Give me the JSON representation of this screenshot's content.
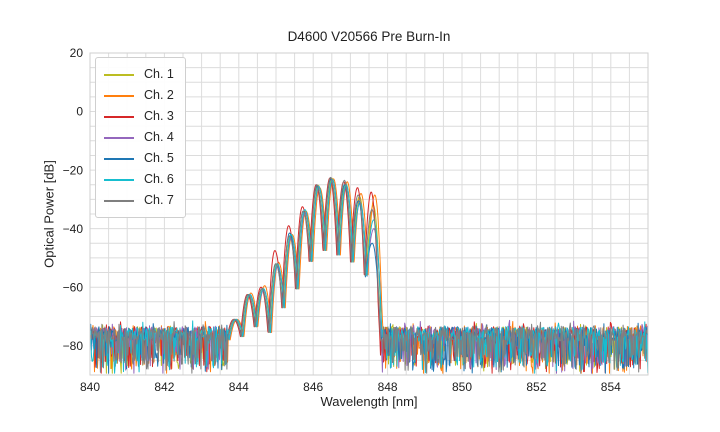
{
  "figure": {
    "title": "D4600 V20566 Pre Burn-In",
    "xlabel": "Wavelength [nm]",
    "ylabel": "Optical Power [dB]",
    "background": "#ffffff",
    "text_color": "#1f1f1f"
  },
  "legend": {
    "items": [
      {
        "label": "Ch. 1",
        "color": "#bcbd22"
      },
      {
        "label": "Ch. 2",
        "color": "#ff7f0e"
      },
      {
        "label": "Ch. 3",
        "color": "#d62728"
      },
      {
        "label": "Ch. 4",
        "color": "#9467bd"
      },
      {
        "label": "Ch. 5",
        "color": "#1f77b4"
      },
      {
        "label": "Ch. 6",
        "color": "#17becf"
      },
      {
        "label": "Ch. 7",
        "color": "#7f7f7f"
      }
    ]
  },
  "chart_data": {
    "type": "line",
    "title": "D4600 V20566 Pre Burn-In",
    "xlabel": "Wavelength [nm]",
    "ylabel": "Optical Power [dB]",
    "xlim": [
      840,
      855
    ],
    "ylim": [
      -90,
      20
    ],
    "x_ticks": [
      {
        "value": 840,
        "label": "840"
      },
      {
        "value": 842,
        "label": "842"
      },
      {
        "value": 844,
        "label": "844"
      },
      {
        "value": 846,
        "label": "846"
      },
      {
        "value": 848,
        "label": "848"
      },
      {
        "value": 850,
        "label": "850"
      },
      {
        "value": 852,
        "label": "852"
      },
      {
        "value": 854,
        "label": "854"
      }
    ],
    "y_ticks": [
      {
        "value": 20,
        "label": "20"
      },
      {
        "value": 0,
        "label": "0"
      },
      {
        "value": -20,
        "label": "−20"
      },
      {
        "value": -40,
        "label": "−40"
      },
      {
        "value": -60,
        "label": "−60"
      },
      {
        "value": -80,
        "label": "−80"
      }
    ],
    "grid": {
      "x_step": 0.5,
      "y_step": 5,
      "color": "#dcdcdc",
      "frame_color": "#cfcfcf"
    },
    "signal": {
      "lobe_half_width": 0.185,
      "step_nm": 0.008,
      "lobes": [
        {
          "c": 843.91,
          "peak": -71.0,
          "null_l": -78,
          "null_r": -77
        },
        {
          "c": 844.28,
          "peak": -62.5,
          "null_l": -77,
          "null_r": -74
        },
        {
          "c": 844.65,
          "peak": -60.5,
          "null_l": -74,
          "null_r": -76
        },
        {
          "c": 845.02,
          "peak": -52.0,
          "null_l": -76,
          "null_r": -67
        },
        {
          "c": 845.39,
          "peak": -42.0,
          "null_l": -67,
          "null_r": -61
        },
        {
          "c": 845.76,
          "peak": -34.0,
          "null_l": -61,
          "null_r": -52
        },
        {
          "c": 846.13,
          "peak": -25.5,
          "null_l": -52,
          "null_r": -48
        },
        {
          "c": 846.5,
          "peak": -23.0,
          "null_l": -48,
          "null_r": -49
        },
        {
          "c": 846.87,
          "peak": -24.5,
          "null_l": -49,
          "null_r": -52
        },
        {
          "c": 847.24,
          "peak": -28.5,
          "null_l": -52,
          "null_r": -57
        },
        {
          "c": 847.61,
          "peak": -30.0,
          "null_l": -57,
          "null_r": -65
        }
      ]
    },
    "noise": {
      "seed": 42,
      "step_nm": 0.02,
      "top_db": -73.5,
      "band_db": 5,
      "spike_prob": 0.3,
      "spike_db": [
        4,
        12
      ],
      "up_prob": 0.1,
      "up_db": 2.2
    },
    "series": [
      {
        "name": "Ch. 1",
        "color": "#bcbd22",
        "dx_nm": 0.005,
        "peak_deltas": [
          0,
          0,
          0,
          0,
          0,
          0,
          0.3,
          0.2,
          0,
          -0.5,
          -2
        ],
        "edge_bottom_db": -77
      },
      {
        "name": "Ch. 2",
        "color": "#ff7f0e",
        "dx_nm": 0.045,
        "peak_deltas": [
          0,
          0.5,
          1,
          0.5,
          0,
          0,
          -0.5,
          0,
          0.5,
          0.5,
          1.5
        ],
        "edge_bottom_db": -77
      },
      {
        "name": "Ch. 3",
        "color": "#d62728",
        "dx_nm": -0.05,
        "peak_deltas": [
          0,
          0,
          0.5,
          4.5,
          3,
          1.5,
          0.5,
          0.3,
          0.5,
          2.5,
          2.5
        ],
        "edge_bottom_db": -77
      },
      {
        "name": "Ch. 4",
        "color": "#9467bd",
        "dx_nm": 0.02,
        "peak_deltas": [
          0,
          0,
          -0.5,
          -1,
          -1,
          -0.5,
          -0.3,
          -0.3,
          -1,
          -2.5,
          -10
        ],
        "edge_bottom_db": -89
      },
      {
        "name": "Ch. 5",
        "color": "#1f77b4",
        "dx_nm": -0.025,
        "peak_deltas": [
          0,
          0,
          0,
          0,
          0.5,
          0,
          0,
          0,
          -0.5,
          -2,
          -15
        ],
        "edge_bottom_db": -77
      },
      {
        "name": "Ch. 6",
        "color": "#17becf",
        "dx_nm": 0.015,
        "peak_deltas": [
          0,
          0,
          0,
          0,
          0,
          0.5,
          0,
          -0.2,
          -0.5,
          -2.5,
          -7
        ],
        "edge_bottom_db": -77
      },
      {
        "name": "Ch. 7",
        "color": "#7f7f7f",
        "dx_nm": -0.03,
        "peak_deltas": [
          0,
          0,
          0,
          0,
          -0.5,
          0,
          0.5,
          0.5,
          1,
          0,
          -3.5
        ],
        "edge_bottom_db": -77
      }
    ]
  }
}
